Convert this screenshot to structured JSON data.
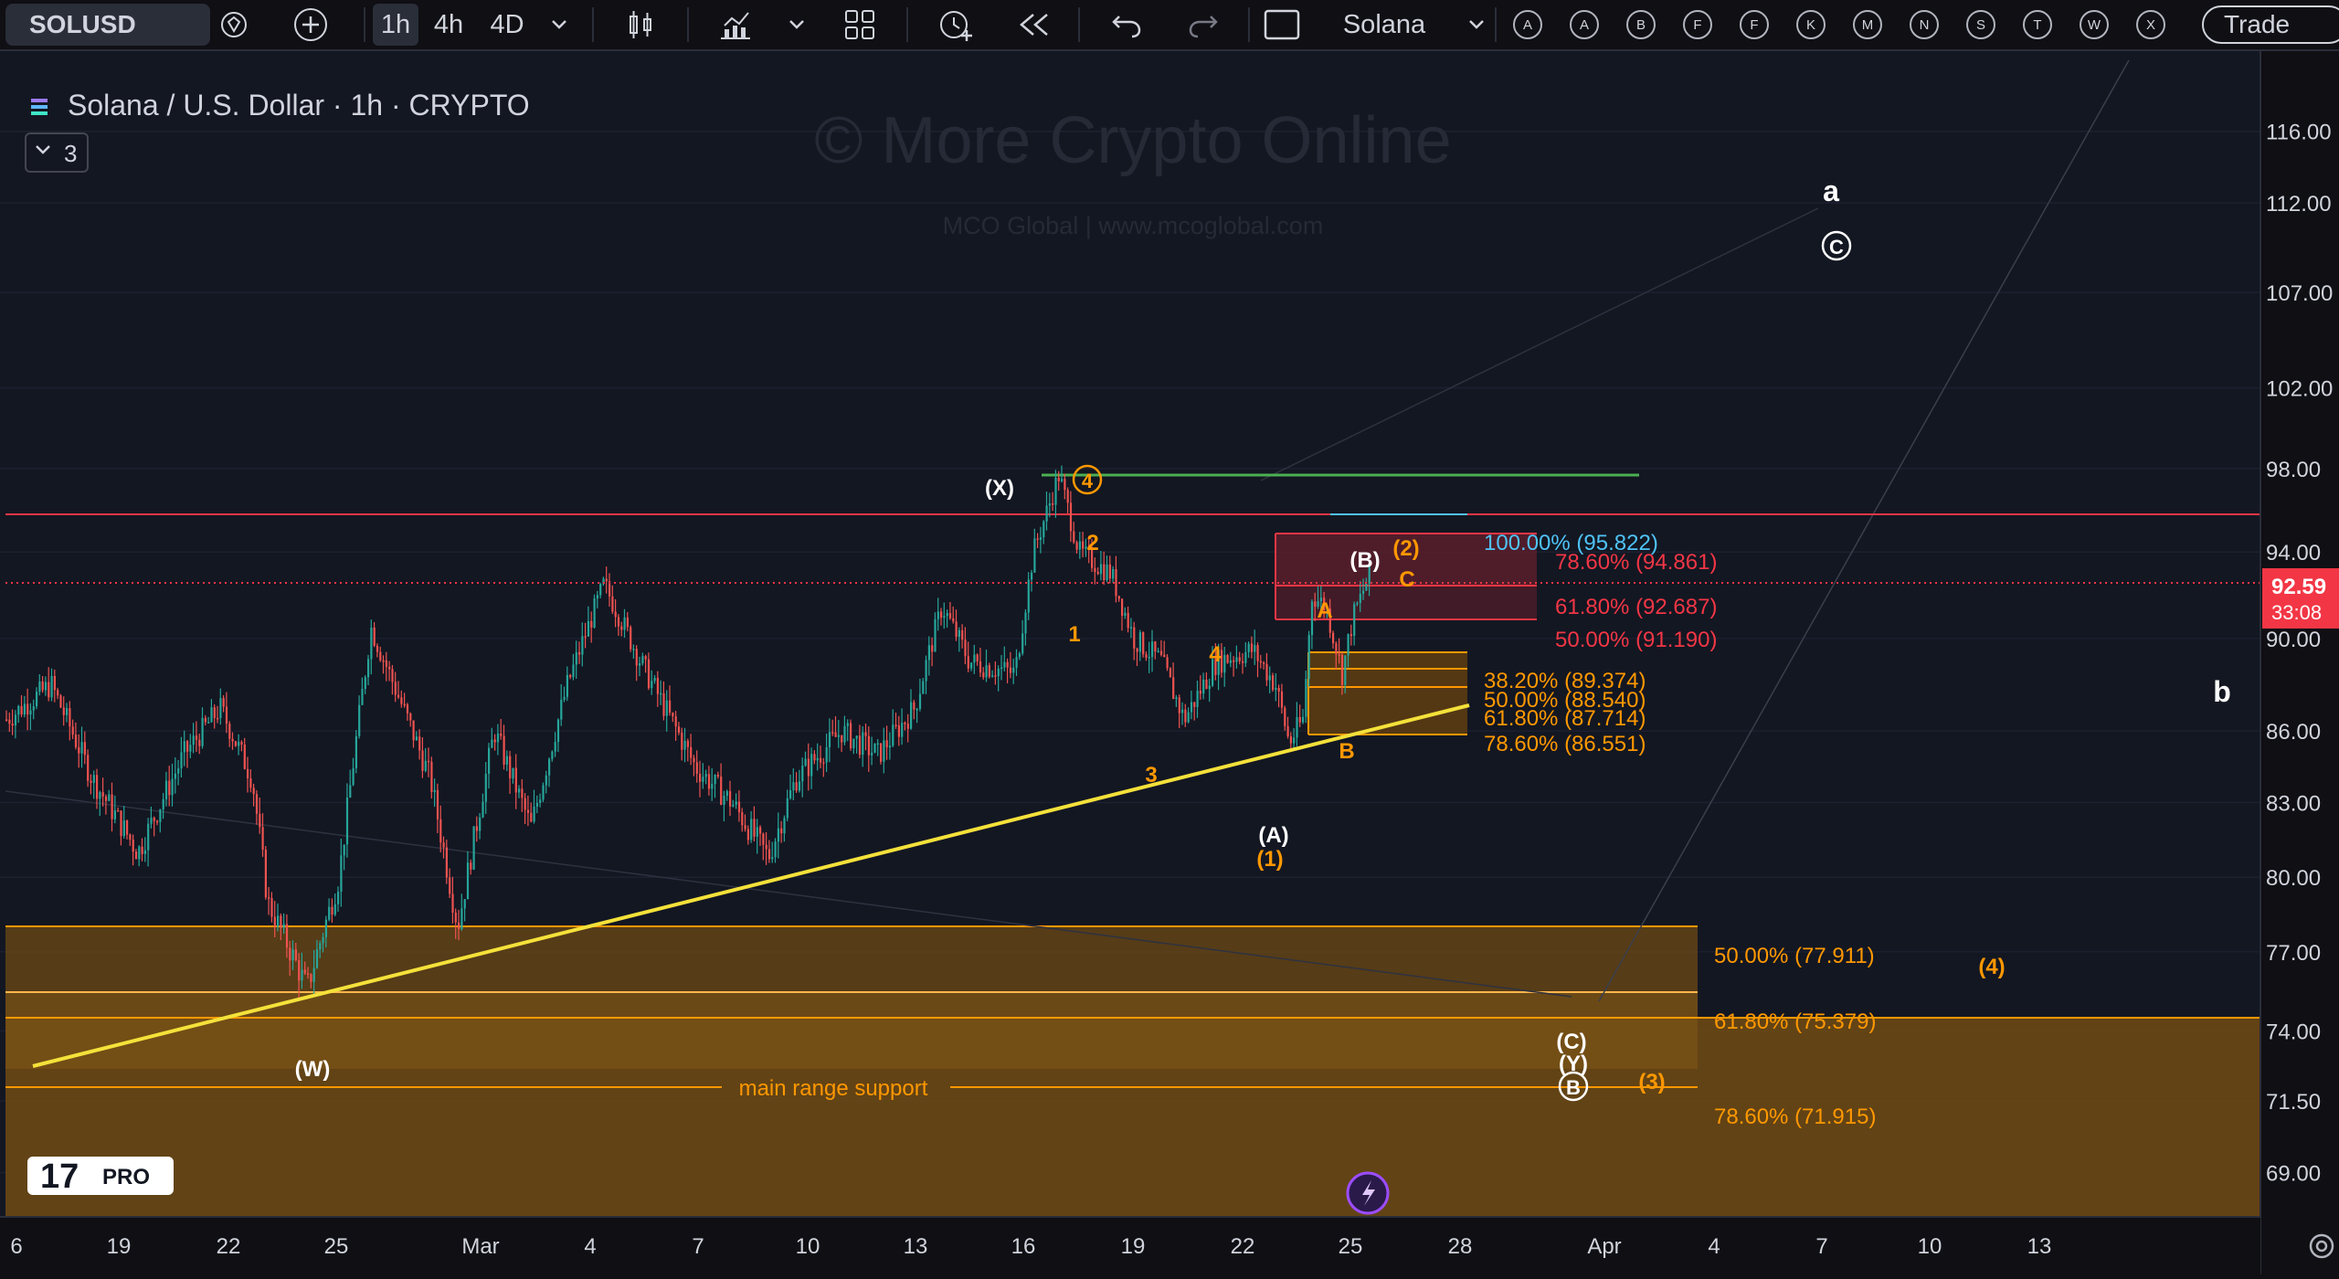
{
  "toolbar": {
    "symbol": "SOLUSD",
    "intervals": [
      "1h",
      "4h",
      "4D"
    ],
    "active_interval": "1h",
    "layout_name": "Solana",
    "letter_buttons": [
      "A",
      "A",
      "B",
      "F",
      "F",
      "K",
      "M",
      "N",
      "S",
      "T",
      "W",
      "X"
    ],
    "trade_button": "Trade",
    "icons": [
      "alert-diamond-icon",
      "add-symbol-icon",
      "interval-dropdown-icon",
      "candles-icon",
      "indicators-icon",
      "indicators-dropdown-icon",
      "templates-icon",
      "alert-icon",
      "replay-icon",
      "undo-icon",
      "redo-icon",
      "snapshot-icon",
      "layout-dropdown-icon"
    ]
  },
  "legend": {
    "title": "Solana / U.S. Dollar · 1h · CRYPTO",
    "indicator_count": "3"
  },
  "watermark": {
    "title": "© More Crypto Online",
    "subtitle": "MCO Global  |  www.mcoglobal.com"
  },
  "price_axis": {
    "labels": [
      "116.00",
      "112.00",
      "107.00",
      "102.00",
      "98.00",
      "94.00",
      "90.00",
      "86.00",
      "83.00",
      "80.00",
      "77.00",
      "74.00",
      "71.50",
      "69.00"
    ],
    "current_price": "92.59",
    "countdown": "33:08",
    "current_color": "#f23645"
  },
  "time_axis": {
    "labels": [
      "6",
      "19",
      "22",
      "25",
      "Mar",
      "4",
      "7",
      "10",
      "13",
      "16",
      "19",
      "22",
      "25",
      "28",
      "Apr",
      "4",
      "7",
      "10",
      "13"
    ]
  },
  "chart_data": {
    "type": "candlestick",
    "symbol": "SOLUSD",
    "timeframe": "1h",
    "ylim": [
      66.5,
      121.5
    ],
    "current_price": 92.59,
    "fib_levels": [
      {
        "label": "100.00% (95.822)",
        "value": 95.822,
        "color": "#4fc3f7"
      },
      {
        "label": "78.60% (94.861)",
        "value": 94.861,
        "color": "#f23645"
      },
      {
        "label": "61.80% (92.687)",
        "value": 92.687,
        "color": "#f23645"
      },
      {
        "label": "50.00% (91.190)",
        "value": 91.19,
        "color": "#f23645"
      },
      {
        "label": "38.20% (89.374)",
        "value": 89.374,
        "color": "#ff9800"
      },
      {
        "label": "50.00% (88.540)",
        "value": 88.54,
        "color": "#ff9800"
      },
      {
        "label": "61.80% (87.714)",
        "value": 87.714,
        "color": "#ff9800"
      },
      {
        "label": "78.60% (86.551)",
        "value": 86.551,
        "color": "#ff9800"
      },
      {
        "label": "50.00% (77.911)",
        "value": 77.911,
        "color": "#ff9800"
      },
      {
        "label": "61.80% (75.379)",
        "value": 75.379,
        "color": "#ff9800"
      },
      {
        "label": "78.60% (71.915)",
        "value": 71.915,
        "color": "#ff9800"
      }
    ],
    "support_label": "main range support",
    "wave_labels": [
      {
        "text": "(X)",
        "color": "#ffffff"
      },
      {
        "text": "4",
        "color": "#ff9800",
        "circled": true
      },
      {
        "text": "2",
        "color": "#ff9800"
      },
      {
        "text": "1",
        "color": "#ff9800"
      },
      {
        "text": "3",
        "color": "#ff9800"
      },
      {
        "text": "4",
        "color": "#ff9800"
      },
      {
        "text": "A",
        "color": "#ff9800"
      },
      {
        "text": "B",
        "color": "#ff9800"
      },
      {
        "text": "C",
        "color": "#ff9800"
      },
      {
        "text": "(B)",
        "color": "#ffffff"
      },
      {
        "text": "(2)",
        "color": "#ff9800"
      },
      {
        "text": "(A)",
        "color": "#ffffff"
      },
      {
        "text": "(1)",
        "color": "#ff9800"
      },
      {
        "text": "(W)",
        "color": "#ffffff"
      },
      {
        "text": "(C)",
        "color": "#ffffff"
      },
      {
        "text": "(Y)",
        "color": "#ffffff"
      },
      {
        "text": "B",
        "color": "#ffffff",
        "circled": true
      },
      {
        "text": "(3)",
        "color": "#ff9800"
      },
      {
        "text": "(4)",
        "color": "#ff9800"
      },
      {
        "text": "a",
        "color": "#ffffff"
      },
      {
        "text": "C",
        "color": "#ffffff",
        "circled": true
      },
      {
        "text": "b",
        "color": "#ffffff"
      }
    ]
  },
  "branding": {
    "logo_text": "17",
    "badge": "PRO"
  }
}
